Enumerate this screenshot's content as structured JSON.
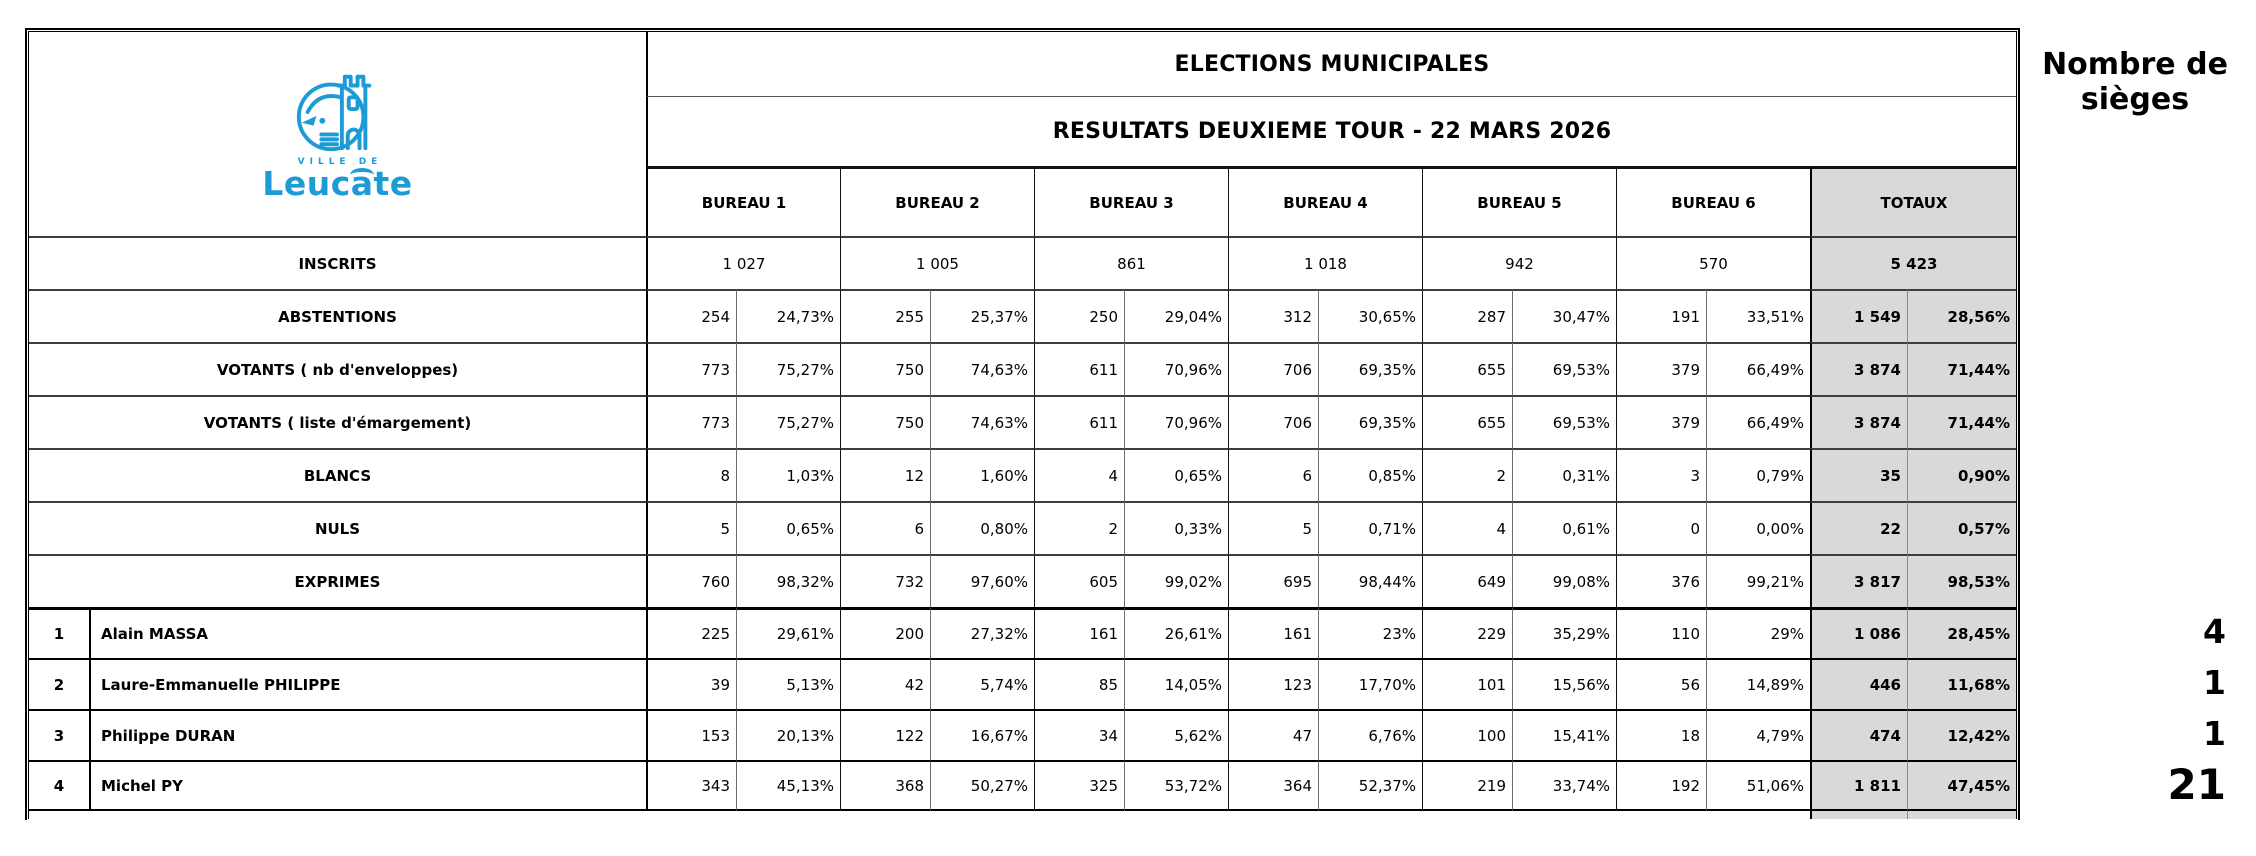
{
  "logo": {
    "ville_text": "VILLE DE",
    "name": "Leucate",
    "color": "#1D9BD6"
  },
  "titles": {
    "line1": "ELECTIONS MUNICIPALES",
    "line2": "RESULTATS DEUXIEME TOUR - 22 MARS 2026"
  },
  "columns": {
    "bureaus": [
      "BUREAU 1",
      "BUREAU 2",
      "BUREAU 3",
      "BUREAU 4",
      "BUREAU 5",
      "BUREAU 6"
    ],
    "totals_label": "TOTAUX"
  },
  "rows": {
    "inscrits": {
      "label": "INSCRITS",
      "values": [
        "1 027",
        "1 005",
        "861",
        "1 018",
        "942",
        "570"
      ],
      "total": "5 423"
    },
    "stats": [
      {
        "label": "ABSTENTIONS",
        "cells": [
          [
            "254",
            "24,73%"
          ],
          [
            "255",
            "25,37%"
          ],
          [
            "250",
            "29,04%"
          ],
          [
            "312",
            "30,65%"
          ],
          [
            "287",
            "30,47%"
          ],
          [
            "191",
            "33,51%"
          ]
        ],
        "total": [
          "1 549",
          "28,56%"
        ]
      },
      {
        "label": "VOTANTS ( nb d'enveloppes)",
        "cells": [
          [
            "773",
            "75,27%"
          ],
          [
            "750",
            "74,63%"
          ],
          [
            "611",
            "70,96%"
          ],
          [
            "706",
            "69,35%"
          ],
          [
            "655",
            "69,53%"
          ],
          [
            "379",
            "66,49%"
          ]
        ],
        "total": [
          "3 874",
          "71,44%"
        ]
      },
      {
        "label": "VOTANTS ( liste d'émargement)",
        "cells": [
          [
            "773",
            "75,27%"
          ],
          [
            "750",
            "74,63%"
          ],
          [
            "611",
            "70,96%"
          ],
          [
            "706",
            "69,35%"
          ],
          [
            "655",
            "69,53%"
          ],
          [
            "379",
            "66,49%"
          ]
        ],
        "total": [
          "3 874",
          "71,44%"
        ]
      },
      {
        "label": "BLANCS",
        "cells": [
          [
            "8",
            "1,03%"
          ],
          [
            "12",
            "1,60%"
          ],
          [
            "4",
            "0,65%"
          ],
          [
            "6",
            "0,85%"
          ],
          [
            "2",
            "0,31%"
          ],
          [
            "3",
            "0,79%"
          ]
        ],
        "total": [
          "35",
          "0,90%"
        ]
      },
      {
        "label": "NULS",
        "cells": [
          [
            "5",
            "0,65%"
          ],
          [
            "6",
            "0,80%"
          ],
          [
            "2",
            "0,33%"
          ],
          [
            "5",
            "0,71%"
          ],
          [
            "4",
            "0,61%"
          ],
          [
            "0",
            "0,00%"
          ]
        ],
        "total": [
          "22",
          "0,57%"
        ]
      },
      {
        "label": "EXPRIMES",
        "cells": [
          [
            "760",
            "98,32%"
          ],
          [
            "732",
            "97,60%"
          ],
          [
            "605",
            "99,02%"
          ],
          [
            "695",
            "98,44%"
          ],
          [
            "649",
            "99,08%"
          ],
          [
            "376",
            "99,21%"
          ]
        ],
        "total": [
          "3 817",
          "98,53%"
        ]
      }
    ],
    "candidates": [
      {
        "num": "1",
        "name": "Alain MASSA",
        "cells": [
          [
            "225",
            "29,61%"
          ],
          [
            "200",
            "27,32%"
          ],
          [
            "161",
            "26,61%"
          ],
          [
            "161",
            "23%"
          ],
          [
            "229",
            "35,29%"
          ],
          [
            "110",
            "29%"
          ]
        ],
        "total": [
          "1 086",
          "28,45%"
        ],
        "seats": "4"
      },
      {
        "num": "2",
        "name": "Laure-Emmanuelle PHILIPPE",
        "cells": [
          [
            "39",
            "5,13%"
          ],
          [
            "42",
            "5,74%"
          ],
          [
            "85",
            "14,05%"
          ],
          [
            "123",
            "17,70%"
          ],
          [
            "101",
            "15,56%"
          ],
          [
            "56",
            "14,89%"
          ]
        ],
        "total": [
          "446",
          "11,68%"
        ],
        "seats": "1"
      },
      {
        "num": "3",
        "name": "Philippe DURAN",
        "cells": [
          [
            "153",
            "20,13%"
          ],
          [
            "122",
            "16,67%"
          ],
          [
            "34",
            "5,62%"
          ],
          [
            "47",
            "6,76%"
          ],
          [
            "100",
            "15,41%"
          ],
          [
            "18",
            "4,79%"
          ]
        ],
        "total": [
          "474",
          "12,42%"
        ],
        "seats": "1"
      },
      {
        "num": "4",
        "name": "Michel PY",
        "cells": [
          [
            "343",
            "45,13%"
          ],
          [
            "368",
            "50,27%"
          ],
          [
            "325",
            "53,72%"
          ],
          [
            "364",
            "52,37%"
          ],
          [
            "219",
            "33,74%"
          ],
          [
            "192",
            "51,06%"
          ]
        ],
        "total": [
          "1 811",
          "47,45%"
        ],
        "seats": "21"
      }
    ]
  },
  "seats": {
    "header": "Nombre de sièges"
  },
  "colors": {
    "totals_bg": "#D9D9D9",
    "grid_line": "#000000",
    "logo_blue": "#1D9BD6"
  }
}
